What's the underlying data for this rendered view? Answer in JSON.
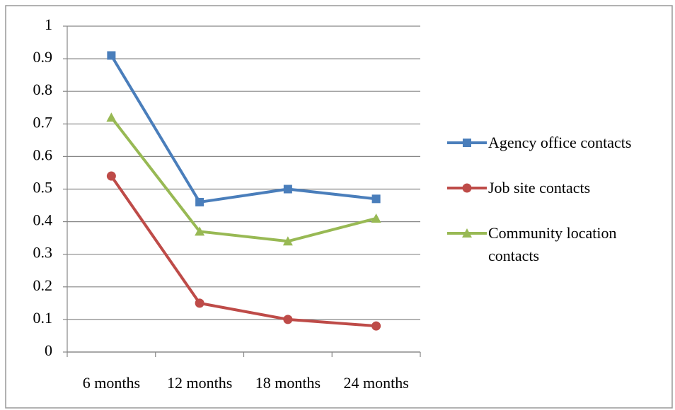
{
  "chart_data": {
    "type": "line",
    "categories": [
      "6 months",
      "12 months",
      "18 months",
      "24 months"
    ],
    "series": [
      {
        "name": "Agency office contacts",
        "color": "#4a7ebb",
        "marker": "square",
        "values": [
          0.91,
          0.46,
          0.5,
          0.47
        ]
      },
      {
        "name": "Job site contacts",
        "color": "#be4b48",
        "marker": "circle",
        "values": [
          0.54,
          0.15,
          0.1,
          0.08
        ]
      },
      {
        "name": "Community location contacts",
        "color": "#98b954",
        "marker": "triangle",
        "values": [
          0.72,
          0.37,
          0.34,
          0.41
        ]
      }
    ],
    "ylim": [
      0,
      1
    ],
    "yticks": [
      0,
      0.1,
      0.2,
      0.3,
      0.4,
      0.5,
      0.6,
      0.7,
      0.8,
      0.9,
      1
    ],
    "grid": true,
    "legend": "right"
  }
}
